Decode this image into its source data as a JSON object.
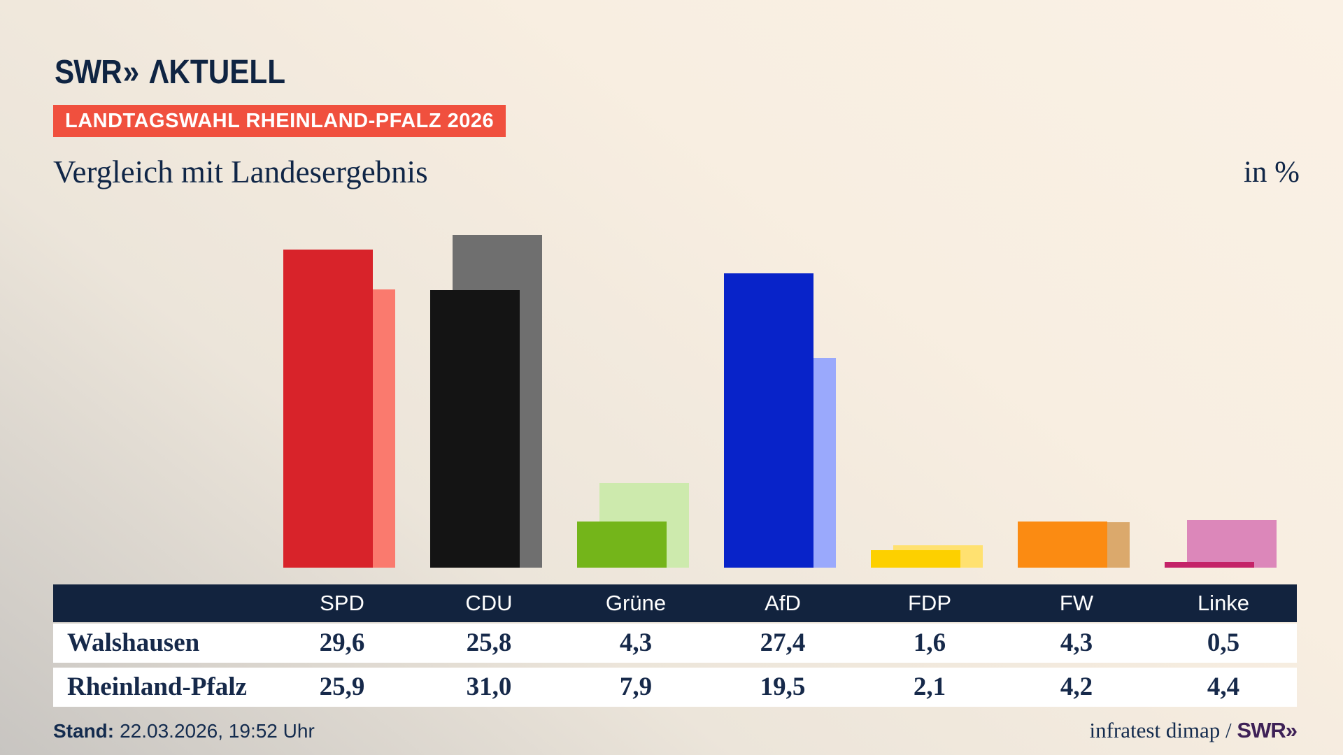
{
  "brand": {
    "swr": "SWR",
    "chevrons": "»",
    "aktuell": "ΛKTUELL"
  },
  "header": {
    "badge": "LANDTAGSWAHL RHEINLAND-PFALZ 2026",
    "title": "Vergleich mit Landesergebnis",
    "unit": "in %"
  },
  "chart_data": {
    "type": "bar",
    "categories": [
      "SPD",
      "CDU",
      "Grüne",
      "AfD",
      "FDP",
      "FW",
      "Linke"
    ],
    "series": [
      {
        "name": "Walshausen",
        "values": [
          29.6,
          25.8,
          4.3,
          27.4,
          1.6,
          4.3,
          0.5
        ]
      },
      {
        "name": "Rheinland-Pfalz",
        "values": [
          25.9,
          31.0,
          7.9,
          19.5,
          2.1,
          4.2,
          4.4
        ]
      }
    ],
    "front_colors": [
      "#d8232a",
      "#141414",
      "#74b51a",
      "#0823c9",
      "#fdd000",
      "#fb8b12",
      "#c42368"
    ],
    "back_colors": [
      "#fa7a6e",
      "#6f6f6f",
      "#cdeaad",
      "#9aa9fc",
      "#ffe170",
      "#dba96c",
      "#dc87ba"
    ],
    "title": "Vergleich mit Landesergebnis",
    "xlabel": "",
    "ylabel": "in %",
    "ylim": [
      0,
      34.6
    ],
    "grid": false,
    "legend_position": "table-rows"
  },
  "table": {
    "columns": [
      "SPD",
      "CDU",
      "Grüne",
      "AfD",
      "FDP",
      "FW",
      "Linke"
    ],
    "rows": [
      {
        "label": "Walshausen",
        "values": [
          "29,6",
          "25,8",
          "4,3",
          "27,4",
          "1,6",
          "4,3",
          "0,5"
        ]
      },
      {
        "label": "Rheinland-Pfalz",
        "values": [
          "25,9",
          "31,0",
          "7,9",
          "19,5",
          "2,1",
          "4,2",
          "4,4"
        ]
      }
    ]
  },
  "footer": {
    "stand_label": "Stand:",
    "stand_value": "22.03.2026, 19:52 Uhr",
    "source_text": "infratest dimap / ",
    "source_brand": "SWR»"
  }
}
